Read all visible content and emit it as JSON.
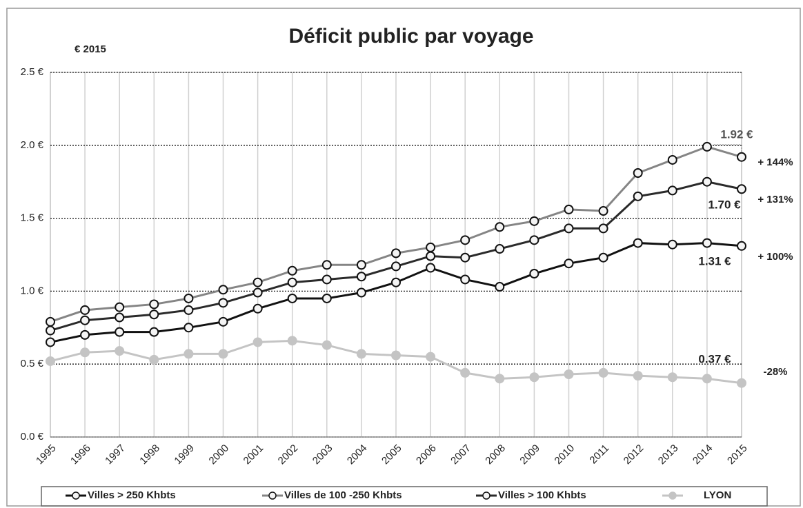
{
  "chart_data": {
    "type": "line",
    "title": "Déficit public par voyage",
    "subtitle": "€ 2015",
    "categories": [
      "1995",
      "1996",
      "1997",
      "1998",
      "1999",
      "2000",
      "2001",
      "2002",
      "2003",
      "2004",
      "2005",
      "2006",
      "2007",
      "2008",
      "2009",
      "2010",
      "2011",
      "2012",
      "2013",
      "2014",
      "2015"
    ],
    "series": [
      {
        "name": "Villes > 250 Khbts",
        "color": "#111111",
        "values": [
          0.65,
          0.7,
          0.72,
          0.72,
          0.75,
          0.79,
          0.88,
          0.95,
          0.95,
          0.99,
          1.06,
          1.16,
          1.08,
          1.03,
          1.12,
          1.19,
          1.23,
          1.33,
          1.32,
          1.33,
          1.31
        ]
      },
      {
        "name": "Villes de 100 -250 Khbts",
        "color": "#858585",
        "values": [
          0.79,
          0.87,
          0.89,
          0.91,
          0.95,
          1.01,
          1.06,
          1.14,
          1.18,
          1.18,
          1.26,
          1.3,
          1.35,
          1.44,
          1.48,
          1.56,
          1.55,
          1.81,
          1.9,
          1.99,
          1.92
        ]
      },
      {
        "name": "Villes > 100 Khbts",
        "color": "#2a2a2a",
        "values": [
          0.73,
          0.8,
          0.82,
          0.84,
          0.87,
          0.92,
          0.99,
          1.06,
          1.08,
          1.1,
          1.17,
          1.24,
          1.23,
          1.29,
          1.35,
          1.43,
          1.43,
          1.65,
          1.69,
          1.75,
          1.7
        ]
      },
      {
        "name": "LYON",
        "color": "#c4c4c4",
        "values": [
          0.52,
          0.58,
          0.59,
          0.53,
          0.57,
          0.57,
          0.65,
          0.66,
          0.63,
          0.57,
          0.56,
          0.55,
          0.44,
          0.4,
          0.41,
          0.43,
          0.44,
          0.42,
          0.41,
          0.4,
          0.37
        ]
      }
    ],
    "ylim": [
      0,
      2.5
    ],
    "yticks": [
      {
        "value": 0,
        "label": "0.0 €"
      },
      {
        "value": 0.5,
        "label": "0.5 €"
      },
      {
        "value": 1,
        "label": "1.0 €"
      },
      {
        "value": 1.5,
        "label": "1.5 €"
      },
      {
        "value": 2,
        "label": "2.0 €"
      },
      {
        "value": 2.5,
        "label": "2.5 €"
      }
    ],
    "grid": true,
    "legend": "bottom",
    "annotations": [
      "1.92 €",
      "+ 144%",
      "1.70 €",
      "+ 131%",
      "1.31 €",
      "+ 100%",
      "0.37 €",
      "-28%"
    ]
  }
}
